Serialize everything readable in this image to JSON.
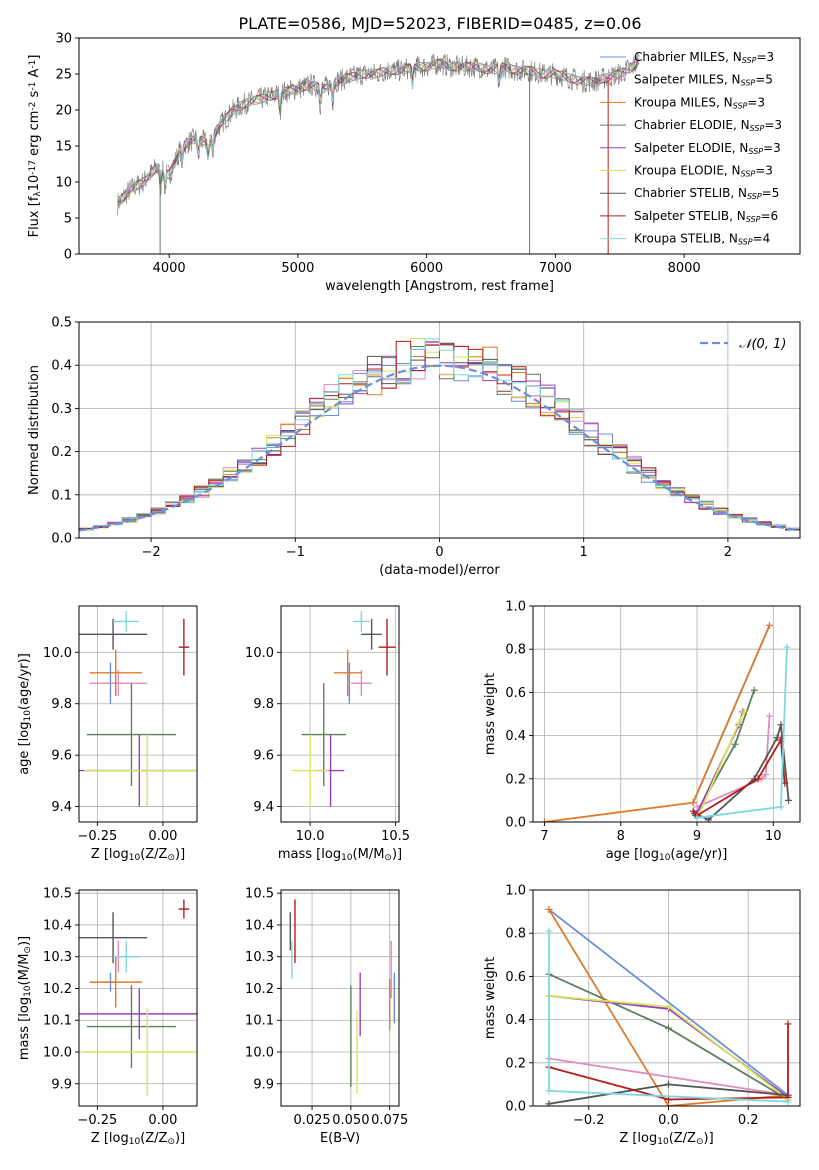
{
  "figure_title": "PLATE=0586, MJD=52023, FIBERID=0485, z=0.06",
  "colors": {
    "Chabrier MILES": "#6a8fdb",
    "Salpeter MILES": "#e28bbf",
    "Kroupa MILES": "#e07b2a",
    "Chabrier ELODIE": "#5f7f5f",
    "Salpeter ELODIE": "#9b3fc0",
    "Kroupa ELODIE": "#d6e65a",
    "Chabrier STELIB": "#555555",
    "Salpeter STELIB": "#b51d1d",
    "Kroupa STELIB": "#7fd8dc",
    "normal": "#6a8fdb",
    "data": "#777777"
  },
  "chart_data": [
    {
      "id": "spectrum",
      "type": "line",
      "title": "PLATE=0586, MJD=52023, FIBERID=0485, z=0.06",
      "xlabel": "wavelength [Angstrom, rest frame]",
      "ylabel": "Flux [f$_\\lambda$10$^{-17}$ erg cm$^{-2}$ s$^{-1}$ A$^{-1}$]",
      "xlim": [
        3300,
        8900
      ],
      "ylim": [
        0,
        30
      ],
      "xticks": [
        4000,
        5000,
        6000,
        7000,
        8000
      ],
      "yticks": [
        0,
        5,
        10,
        15,
        20,
        25,
        30
      ],
      "legend": "upper-right",
      "series": [
        {
          "name": "Chabrier MILES, N$_{SSP}$=3",
          "legend": [
            "Chabrier MILES, N",
            "SSP",
            "=3"
          ]
        },
        {
          "name": "Salpeter MILES, N$_{SSP}$=5",
          "legend": [
            "Salpeter MILES, N",
            "SSP",
            "=5"
          ]
        },
        {
          "name": "Kroupa MILES, N$_{SSP}$=3",
          "legend": [
            "Kroupa MILES, N",
            "SSP",
            "=3"
          ]
        },
        {
          "name": "Chabrier ELODIE, N$_{SSP}$=3",
          "legend": [
            "Chabrier ELODIE, N",
            "SSP",
            "=3"
          ]
        },
        {
          "name": "Salpeter ELODIE, N$_{SSP}$=3",
          "legend": [
            "Salpeter ELODIE, N",
            "SSP",
            "=3"
          ]
        },
        {
          "name": "Kroupa ELODIE, N$_{SSP}$=3",
          "legend": [
            "Kroupa ELODIE, N",
            "SSP",
            "=3"
          ]
        },
        {
          "name": "Chabrier STELIB, N$_{SSP}$=5",
          "legend": [
            "Chabrier STELIB, N",
            "SSP",
            "=5"
          ]
        },
        {
          "name": "Salpeter STELIB, N$_{SSP}$=6",
          "legend": [
            "Salpeter STELIB, N",
            "SSP",
            "=6"
          ]
        },
        {
          "name": "Kroupa STELIB, N$_{SSP}$=4",
          "legend": [
            "Kroupa STELIB, N",
            "SSP",
            "=4"
          ]
        }
      ],
      "continuum": [
        [
          3600,
          7
        ],
        [
          3700,
          9
        ],
        [
          3800,
          10
        ],
        [
          3900,
          12
        ],
        [
          4000,
          11
        ],
        [
          4100,
          15
        ],
        [
          4200,
          16
        ],
        [
          4300,
          15.5
        ],
        [
          4400,
          18
        ],
        [
          4500,
          20
        ],
        [
          4600,
          21
        ],
        [
          4700,
          21.5
        ],
        [
          4800,
          22
        ],
        [
          4900,
          22.5
        ],
        [
          5000,
          23
        ],
        [
          5100,
          23.5
        ],
        [
          5200,
          23
        ],
        [
          5300,
          24
        ],
        [
          5400,
          24.5
        ],
        [
          5500,
          25
        ],
        [
          5600,
          25
        ],
        [
          5700,
          25.5
        ],
        [
          5800,
          25.5
        ],
        [
          5900,
          26
        ],
        [
          6000,
          26
        ],
        [
          6100,
          26.5
        ],
        [
          6200,
          26
        ],
        [
          6300,
          26
        ],
        [
          6400,
          26
        ],
        [
          6500,
          25.5
        ],
        [
          6600,
          26
        ],
        [
          6700,
          25.5
        ],
        [
          6800,
          25.5
        ],
        [
          6900,
          25
        ],
        [
          7000,
          25
        ],
        [
          7100,
          24.5
        ],
        [
          7200,
          24
        ],
        [
          7300,
          24
        ],
        [
          7400,
          24.5
        ],
        [
          7500,
          25
        ],
        [
          7600,
          26
        ],
        [
          7650,
          27
        ]
      ],
      "features": [
        [
          3933,
          4
        ],
        [
          3968,
          5
        ],
        [
          4101,
          11
        ],
        [
          4227,
          13
        ],
        [
          4304,
          12.5
        ],
        [
          4340,
          14
        ],
        [
          4861,
          19
        ],
        [
          5175,
          20
        ],
        [
          5270,
          21
        ],
        [
          5890,
          22
        ],
        [
          6563,
          24
        ],
        [
          6800,
          0
        ],
        [
          7410,
          0
        ],
        [
          3930,
          0
        ]
      ]
    },
    {
      "id": "residuals",
      "type": "line",
      "xlabel": "(data-model)/error",
      "ylabel": "Normed distribution",
      "xlim": [
        -2.5,
        2.5
      ],
      "ylim": [
        0,
        0.5
      ],
      "xticks": [
        -2,
        -1,
        0,
        1,
        2
      ],
      "yticks": [
        0.0,
        0.1,
        0.2,
        0.3,
        0.4,
        0.5
      ],
      "legend": "upper-right",
      "series": [
        {
          "name": "$\\mathcal{N}(0,1)$",
          "legend": "𝒩(0, 1)"
        }
      ],
      "histograms": "one step histogram per fit (9), bins of 0.1, close to N(0,1)"
    },
    {
      "id": "age_vs_Z",
      "type": "scatter",
      "xlabel": "Z [log$_{10}$($Z/Z_\\odot$)]",
      "ylabel": "age  [log$_{10}$($age/yr$)]",
      "xlim": [
        -0.32,
        0.13
      ],
      "ylim": [
        9.34,
        10.18
      ],
      "xticks": [
        -0.25,
        0.0
      ],
      "yticks": [
        9.4,
        9.6,
        9.8,
        10.0
      ],
      "points": [
        {
          "fit": "Chabrier MILES",
          "x": -0.2,
          "xerr": 0.02,
          "y": 9.88,
          "yerr": 0.08
        },
        {
          "fit": "Salpeter MILES",
          "x": -0.17,
          "xerr": 0.11,
          "y": 9.88,
          "yerr": 0.05
        },
        {
          "fit": "Kroupa MILES",
          "x": -0.18,
          "xerr": 0.1,
          "y": 9.92,
          "yerr": 0.09
        },
        {
          "fit": "Chabrier ELODIE",
          "x": -0.12,
          "xerr": 0.17,
          "y": 9.68,
          "yerr": 0.2
        },
        {
          "fit": "Salpeter ELODIE",
          "x": -0.09,
          "xerr": 0.29,
          "y": 9.54,
          "yerr": 0.14
        },
        {
          "fit": "Kroupa ELODIE",
          "x": -0.06,
          "xerr": 0.24,
          "y": 9.54,
          "yerr": 0.14
        },
        {
          "fit": "Chabrier STELIB",
          "x": -0.19,
          "xerr": 0.13,
          "y": 10.07,
          "yerr": 0.06
        },
        {
          "fit": "Salpeter STELIB",
          "x": 0.08,
          "xerr": 0.02,
          "y": 10.02,
          "yerr": 0.11
        },
        {
          "fit": "Kroupa STELIB",
          "x": -0.14,
          "xerr": 0.05,
          "y": 10.12,
          "yerr": 0.04
        }
      ]
    },
    {
      "id": "age_vs_mass",
      "type": "scatter",
      "xlabel": "mass [log$_{10}$($M/M_\\odot$)]",
      "ylabel": "",
      "xlim": [
        9.83,
        10.52
      ],
      "ylim": [
        9.34,
        10.18
      ],
      "xticks": [
        10.0,
        10.5
      ],
      "yticks": [
        9.4,
        9.6,
        9.8,
        10.0
      ],
      "points": [
        {
          "fit": "Chabrier MILES",
          "x": 10.23,
          "y": 9.88,
          "yerr": 0.08
        },
        {
          "fit": "Salpeter MILES",
          "x": 10.3,
          "xerr": 0.06,
          "y": 9.88,
          "yerr": 0.05
        },
        {
          "fit": "Kroupa MILES",
          "x": 10.22,
          "xerr": 0.08,
          "y": 9.92,
          "yerr": 0.09
        },
        {
          "fit": "Chabrier ELODIE",
          "x": 10.08,
          "xerr": 0.13,
          "y": 9.68,
          "yerr": 0.2
        },
        {
          "fit": "Salpeter ELODIE",
          "x": 10.12,
          "xerr": 0.08,
          "y": 9.54,
          "yerr": 0.14
        },
        {
          "fit": "Kroupa ELODIE",
          "x": 10.0,
          "xerr": 0.11,
          "y": 9.54,
          "yerr": 0.14
        },
        {
          "fit": "Chabrier STELIB",
          "x": 10.36,
          "xerr": 0.06,
          "y": 10.07,
          "yerr": 0.06
        },
        {
          "fit": "Salpeter STELIB",
          "x": 10.45,
          "xerr": 0.05,
          "y": 10.02,
          "yerr": 0.11
        },
        {
          "fit": "Kroupa STELIB",
          "x": 10.3,
          "xerr": 0.05,
          "y": 10.12,
          "yerr": 0.04
        }
      ]
    },
    {
      "id": "weight_vs_age",
      "type": "line",
      "xlabel": "age  [log$_{10}$($age/yr$)]",
      "ylabel": "mass weight",
      "xlim": [
        6.85,
        10.35
      ],
      "ylim": [
        0,
        1
      ],
      "xticks": [
        7,
        8,
        9,
        10
      ],
      "yticks": [
        0.0,
        0.2,
        0.4,
        0.6,
        0.8,
        1.0
      ],
      "series": [
        {
          "fit": "Chabrier MILES",
          "x": [
            8.95,
            9.95
          ],
          "y": [
            0.09,
            0.91
          ]
        },
        {
          "fit": "Kroupa MILES",
          "x": [
            7.0,
            8.95,
            9.95
          ],
          "y": [
            0.0,
            0.09,
            0.91
          ]
        },
        {
          "fit": "Salpeter MILES",
          "x": [
            9.0,
            9.85,
            9.9,
            9.95
          ],
          "y": [
            0.07,
            0.2,
            0.22,
            0.49
          ]
        },
        {
          "fit": "Chabrier ELODIE",
          "x": [
            8.98,
            9.5,
            9.75
          ],
          "y": [
            0.03,
            0.36,
            0.61
          ]
        },
        {
          "fit": "Salpeter ELODIE",
          "x": [
            9.0,
            9.55,
            9.6
          ],
          "y": [
            0.04,
            0.45,
            0.51
          ]
        },
        {
          "fit": "Kroupa ELODIE",
          "x": [
            9.02,
            9.55,
            9.62
          ],
          "y": [
            0.03,
            0.46,
            0.51
          ]
        },
        {
          "fit": "Chabrier STELIB",
          "x": [
            8.97,
            9.15,
            9.75,
            10.05,
            10.1,
            10.2
          ],
          "y": [
            0.04,
            0.01,
            0.2,
            0.39,
            0.45,
            0.1
          ]
        },
        {
          "fit": "Salpeter STELIB",
          "x": [
            8.95,
            9.0,
            9.8,
            10.1,
            10.15
          ],
          "y": [
            0.05,
            0.03,
            0.2,
            0.38,
            0.18
          ]
        },
        {
          "fit": "Kroupa STELIB",
          "x": [
            9.0,
            10.1,
            10.18
          ],
          "y": [
            0.02,
            0.07,
            0.81
          ]
        }
      ]
    },
    {
      "id": "mass_vs_Z",
      "type": "scatter",
      "xlabel": "Z [log$_{10}$($Z/Z_\\odot$)]",
      "ylabel": "mass [log$_{10}$($M/M_\\odot$)]",
      "xlim": [
        -0.32,
        0.13
      ],
      "ylim": [
        9.83,
        10.51
      ],
      "xticks": [
        -0.25,
        0.0
      ],
      "yticks": [
        9.9,
        10.0,
        10.1,
        10.2,
        10.3,
        10.4,
        10.5
      ],
      "points": [
        {
          "fit": "Chabrier MILES",
          "x": -0.2,
          "xerr": 0.02,
          "y": 10.22,
          "yerr": 0.03
        },
        {
          "fit": "Salpeter MILES",
          "x": -0.17,
          "xerr": 0.02,
          "y": 10.3,
          "yerr": 0.05
        },
        {
          "fit": "Kroupa MILES",
          "x": -0.18,
          "xerr": 0.1,
          "y": 10.22,
          "yerr": 0.08
        },
        {
          "fit": "Chabrier ELODIE",
          "x": -0.12,
          "xerr": 0.17,
          "y": 10.08,
          "yerr": 0.13
        },
        {
          "fit": "Salpeter ELODIE",
          "x": -0.09,
          "xerr": 0.29,
          "y": 10.12,
          "yerr": 0.08
        },
        {
          "fit": "Kroupa ELODIE",
          "x": -0.06,
          "xerr": 0.24,
          "y": 10.0,
          "yerr": 0.14
        },
        {
          "fit": "Chabrier STELIB",
          "x": -0.19,
          "xerr": 0.13,
          "y": 10.36,
          "yerr": 0.08
        },
        {
          "fit": "Salpeter STELIB",
          "x": 0.08,
          "xerr": 0.02,
          "y": 10.45,
          "yerr": 0.03
        },
        {
          "fit": "Kroupa STELIB",
          "x": -0.14,
          "xerr": 0.05,
          "y": 10.3,
          "yerr": 0.05
        }
      ]
    },
    {
      "id": "mass_vs_EBV",
      "type": "scatter",
      "xlabel": "E(B-V)",
      "ylabel": "",
      "xlim": [
        0.005,
        0.081
      ],
      "ylim": [
        9.83,
        10.51
      ],
      "xticks": [
        0.025,
        0.05,
        0.075
      ],
      "xticklabels": [
        "0.025",
        "0.050",
        "0.075"
      ],
      "yticks": [
        9.9,
        10.0,
        10.1,
        10.2,
        10.3,
        10.4,
        10.5
      ],
      "points": [
        {
          "fit": "Chabrier MILES",
          "x": 0.078,
          "y": 10.17,
          "yerr": 0.08
        },
        {
          "fit": "Salpeter MILES",
          "x": 0.076,
          "y": 10.26,
          "yerr": 0.09
        },
        {
          "fit": "Kroupa MILES",
          "x": 0.075,
          "y": 10.15,
          "yerr": 0.08
        },
        {
          "fit": "Chabrier ELODIE",
          "x": 0.05,
          "y": 10.05,
          "yerr": 0.16
        },
        {
          "fit": "Salpeter ELODIE",
          "x": 0.056,
          "y": 10.15,
          "yerr": 0.1
        },
        {
          "fit": "Kroupa ELODIE",
          "x": 0.054,
          "y": 10.0,
          "yerr": 0.13
        },
        {
          "fit": "Chabrier STELIB",
          "x": 0.011,
          "y": 10.38,
          "yerr": 0.06
        },
        {
          "fit": "Salpeter STELIB",
          "x": 0.014,
          "y": 10.38,
          "yerr": 0.1
        },
        {
          "fit": "Kroupa STELIB",
          "x": 0.012,
          "y": 10.29,
          "yerr": 0.06
        }
      ]
    },
    {
      "id": "weight_vs_Z",
      "type": "line",
      "xlabel": "Z [log$_{10}$($Z/Z_\\odot$)]",
      "ylabel": "mass weight",
      "xlim": [
        -0.34,
        0.33
      ],
      "ylim": [
        0,
        1
      ],
      "xticks": [
        -0.2,
        0.0,
        0.2
      ],
      "yticks": [
        0.0,
        0.2,
        0.4,
        0.6,
        0.8,
        1.0
      ],
      "series": [
        {
          "fit": "Chabrier MILES",
          "x": [
            -0.3,
            0.3
          ],
          "y": [
            0.91,
            0.05
          ]
        },
        {
          "fit": "Kroupa MILES",
          "x": [
            -0.3,
            0.0,
            0.3
          ],
          "y": [
            0.91,
            0.0,
            0.05
          ]
        },
        {
          "fit": "Salpeter MILES",
          "x": [
            -0.3,
            0.3
          ],
          "y": [
            0.22,
            0.05
          ]
        },
        {
          "fit": "Chabrier ELODIE",
          "x": [
            -0.3,
            0.0,
            0.3
          ],
          "y": [
            0.61,
            0.36,
            0.03
          ]
        },
        {
          "fit": "Salpeter ELODIE",
          "x": [
            -0.3,
            0.0,
            0.3
          ],
          "y": [
            0.51,
            0.45,
            0.04
          ]
        },
        {
          "fit": "Kroupa ELODIE",
          "x": [
            -0.3,
            0.0,
            0.3
          ],
          "y": [
            0.51,
            0.46,
            0.03
          ]
        },
        {
          "fit": "Chabrier STELIB",
          "x": [
            -0.3,
            0.0,
            0.3
          ],
          "y": [
            0.01,
            0.1,
            0.05
          ]
        },
        {
          "fit": "Salpeter STELIB",
          "x": [
            -0.3,
            0.0,
            0.3,
            0.3
          ],
          "y": [
            0.18,
            0.03,
            0.04,
            0.38
          ]
        },
        {
          "fit": "Kroupa STELIB",
          "x": [
            -0.3,
            -0.3,
            0.3
          ],
          "y": [
            0.81,
            0.07,
            0.02
          ]
        }
      ]
    }
  ]
}
